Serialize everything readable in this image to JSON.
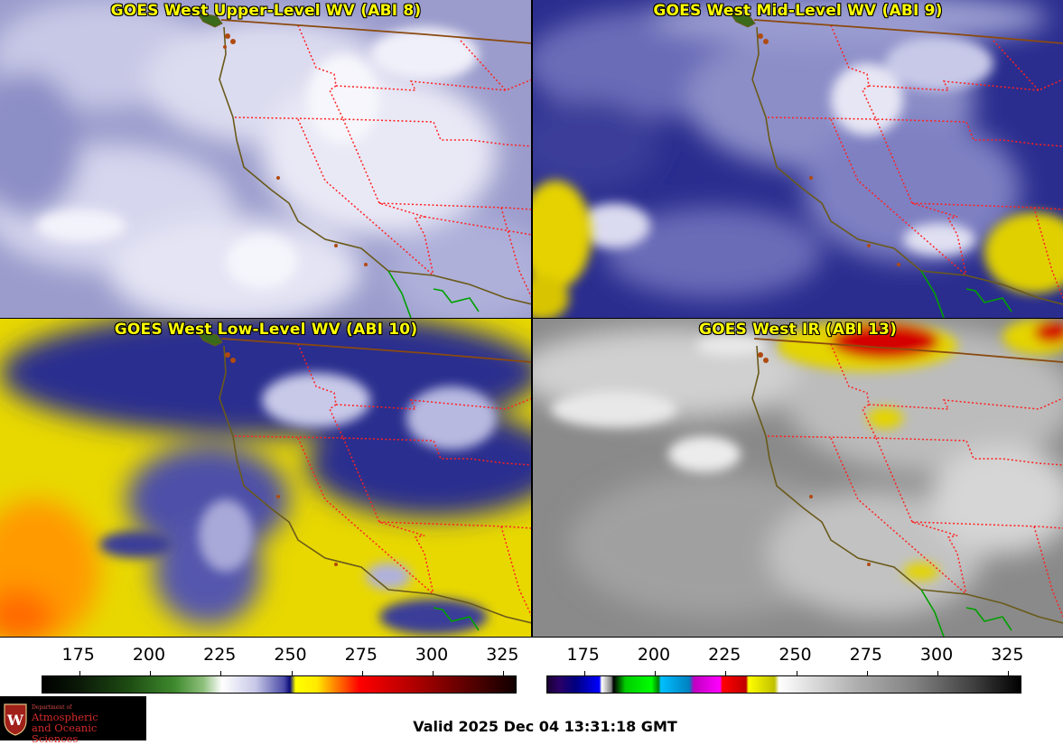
{
  "panels": [
    {
      "title": "GOES West Upper-Level WV (ABI 8)",
      "colormap": "water-vapor"
    },
    {
      "title": "GOES West Mid-Level WV (ABI 9)",
      "colormap": "water-vapor"
    },
    {
      "title": "GOES West Low-Level WV (ABI 10)",
      "colormap": "water-vapor"
    },
    {
      "title": "GOES West IR (ABI 13)",
      "colormap": "infrared"
    }
  ],
  "colorbars": {
    "left": {
      "ticks": [
        "175",
        "200",
        "225",
        "250",
        "275",
        "300",
        "325"
      ],
      "min": 162,
      "max": 330
    },
    "right": {
      "ticks": [
        "175",
        "200",
        "225",
        "250",
        "275",
        "300",
        "325"
      ],
      "min": 162,
      "max": 330
    }
  },
  "logo": {
    "dept": "Department of",
    "line1": "Atmospheric",
    "line2": "and Oceanic Sciences"
  },
  "valid_time": "Valid 2025 Dec 04 13:31:18 GMT",
  "colors": {
    "title_text": "#ffff00",
    "state_borders": "#ff2020",
    "coastline": "#7a5a1a",
    "mexico_border": "#00a000",
    "logo_red": "#d42a2a"
  }
}
